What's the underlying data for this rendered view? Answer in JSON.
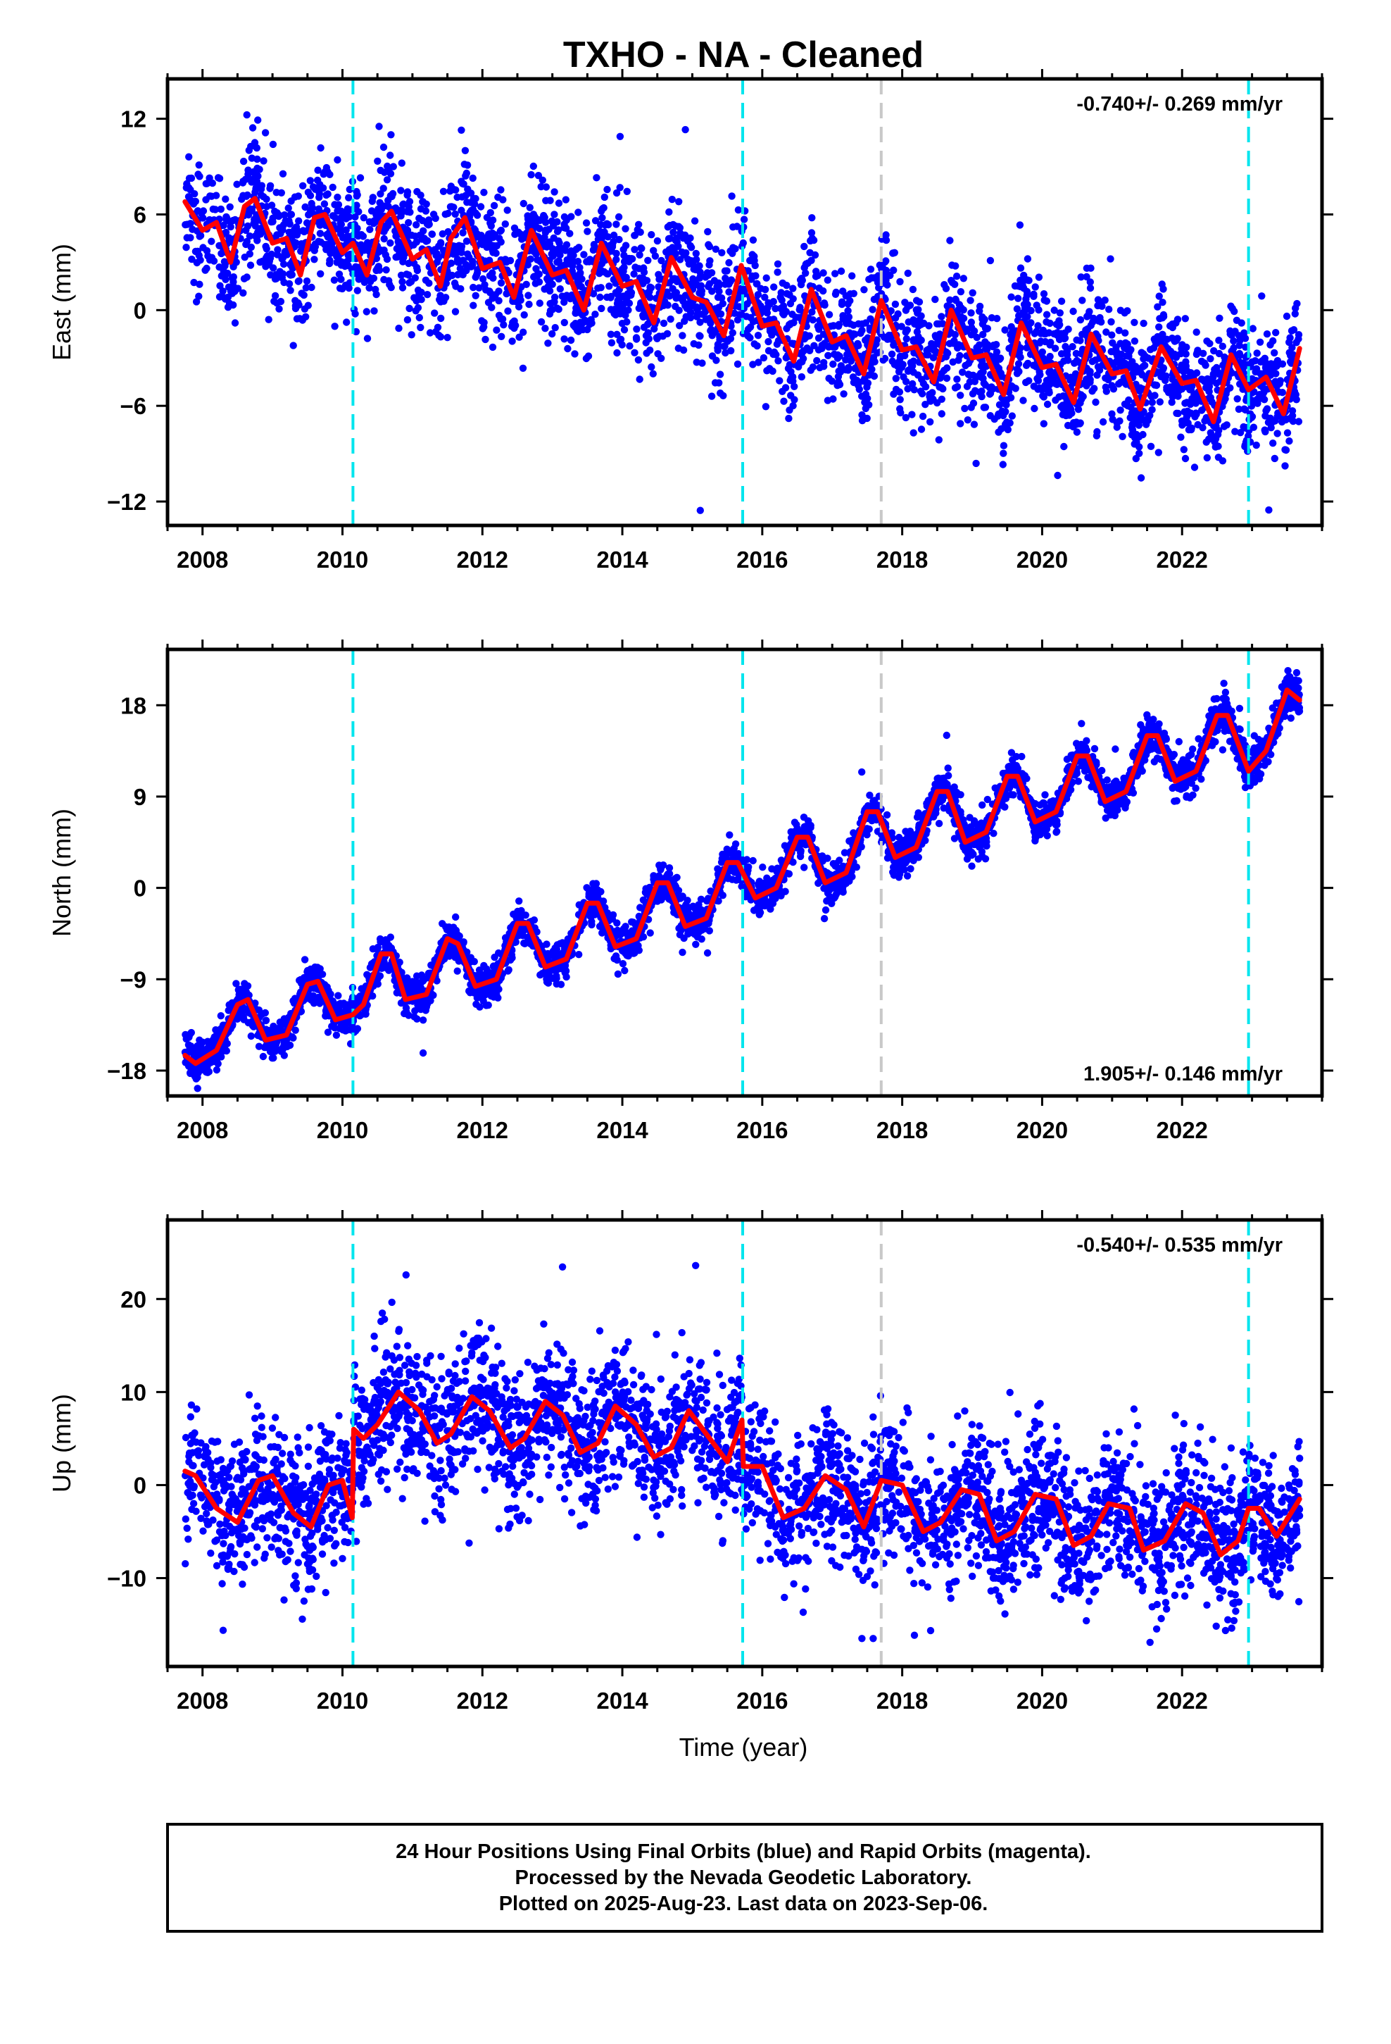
{
  "figure": {
    "title": "TXHO  - NA - Cleaned",
    "xlabel": "Time (year)",
    "footer": [
      "24 Hour Positions Using Final Orbits (blue) and Rapid Orbits (magenta).",
      "Processed by the Nevada Geodetic Laboratory.",
      "Plotted on 2025-Aug-23. Last data on 2023-Sep-06."
    ],
    "colors": {
      "points": "#0000ff",
      "fit": "#ff0000",
      "step_marker": "#00e5ee",
      "equipment_marker": "#c8c8c8",
      "frame": "#000000"
    }
  },
  "chart_data": [
    {
      "type": "scatter",
      "component": "East",
      "ylabel": "East (mm)",
      "rate_label": "-0.740+/- 0.269 mm/yr",
      "xlim": [
        2007.5,
        2024.0
      ],
      "ylim": [
        -13.5,
        14.5
      ],
      "xticks": [
        2008,
        2010,
        2012,
        2014,
        2016,
        2018,
        2020,
        2022
      ],
      "yticks": [
        -12,
        -6,
        0,
        6,
        12
      ],
      "data_start": 2007.75,
      "data_end": 2023.68,
      "dashed_markers": [
        {
          "x": 2010.15,
          "kind": "step"
        },
        {
          "x": 2015.72,
          "kind": "step"
        },
        {
          "x": 2017.7,
          "kind": "equipment"
        },
        {
          "x": 2022.95,
          "kind": "step"
        }
      ],
      "series": [
        {
          "kind": "fit",
          "x": [
            2007.75,
            2008.0,
            2008.2,
            2008.4,
            2008.6,
            2008.75,
            2009.0,
            2009.2,
            2009.4,
            2009.6,
            2009.75,
            2010.0,
            2010.15,
            2010.35,
            2010.55,
            2010.7,
            2011.0,
            2011.2,
            2011.4,
            2011.55,
            2011.75,
            2012.0,
            2012.25,
            2012.45,
            2012.7,
            2013.0,
            2013.2,
            2013.45,
            2013.7,
            2014.0,
            2014.2,
            2014.45,
            2014.7,
            2015.0,
            2015.2,
            2015.45,
            2015.7,
            2016.0,
            2016.2,
            2016.45,
            2016.7,
            2017.0,
            2017.2,
            2017.45,
            2017.7,
            2018.0,
            2018.2,
            2018.45,
            2018.7,
            2019.0,
            2019.2,
            2019.45,
            2019.7,
            2020.0,
            2020.2,
            2020.45,
            2020.7,
            2021.0,
            2021.2,
            2021.4,
            2021.7,
            2022.0,
            2022.2,
            2022.45,
            2022.7,
            2022.95,
            2023.2,
            2023.45,
            2023.68
          ],
          "y": [
            6.8,
            5.0,
            5.5,
            3.0,
            6.5,
            7.0,
            4.2,
            4.5,
            2.2,
            5.8,
            6.0,
            3.6,
            4.2,
            2.2,
            5.5,
            6.2,
            3.2,
            3.8,
            1.5,
            4.5,
            5.8,
            2.6,
            3.0,
            0.8,
            5.0,
            2.2,
            2.5,
            0.0,
            4.2,
            1.5,
            1.8,
            -0.8,
            3.3,
            0.8,
            0.5,
            -1.6,
            2.8,
            -1.0,
            -0.8,
            -3.2,
            1.3,
            -2.0,
            -1.6,
            -4.0,
            0.6,
            -2.5,
            -2.3,
            -4.5,
            0.0,
            -3.0,
            -2.8,
            -5.3,
            -0.8,
            -3.6,
            -3.4,
            -5.8,
            -1.5,
            -4.0,
            -3.8,
            -6.2,
            -2.3,
            -4.6,
            -4.4,
            -7.0,
            -2.8,
            -5.0,
            -4.2,
            -6.5,
            -2.4
          ]
        }
      ]
    },
    {
      "type": "scatter",
      "component": "North",
      "ylabel": "North (mm)",
      "rate_label": "1.905+/- 0.146 mm/yr",
      "xlim": [
        2007.5,
        2024.0
      ],
      "ylim": [
        -20.5,
        23.5
      ],
      "xticks": [
        2008,
        2010,
        2012,
        2014,
        2016,
        2018,
        2020,
        2022
      ],
      "yticks": [
        -18,
        -9,
        0,
        9,
        18
      ],
      "data_start": 2007.75,
      "data_end": 2023.68,
      "dashed_markers": [
        {
          "x": 2010.15,
          "kind": "step"
        },
        {
          "x": 2015.72,
          "kind": "step"
        },
        {
          "x": 2017.7,
          "kind": "equipment"
        },
        {
          "x": 2022.95,
          "kind": "step"
        }
      ],
      "series": [
        {
          "kind": "fit",
          "x": [
            2007.75,
            2007.9,
            2008.2,
            2008.5,
            2008.65,
            2008.9,
            2009.2,
            2009.5,
            2009.65,
            2009.9,
            2010.15,
            2010.3,
            2010.55,
            2010.7,
            2010.9,
            2011.2,
            2011.5,
            2011.65,
            2011.9,
            2012.2,
            2012.5,
            2012.65,
            2012.9,
            2013.2,
            2013.5,
            2013.65,
            2013.9,
            2014.2,
            2014.5,
            2014.65,
            2014.9,
            2015.2,
            2015.5,
            2015.65,
            2015.9,
            2016.2,
            2016.5,
            2016.65,
            2016.9,
            2017.2,
            2017.5,
            2017.65,
            2017.9,
            2018.2,
            2018.5,
            2018.65,
            2018.9,
            2019.2,
            2019.5,
            2019.65,
            2019.9,
            2020.2,
            2020.5,
            2020.65,
            2020.9,
            2021.2,
            2021.5,
            2021.65,
            2021.9,
            2022.2,
            2022.5,
            2022.65,
            2022.95,
            2023.2,
            2023.5,
            2023.68
          ],
          "y": [
            -16.5,
            -17.3,
            -16.0,
            -11.5,
            -11.0,
            -15.0,
            -14.5,
            -9.5,
            -9.2,
            -13.0,
            -12.5,
            -11.5,
            -6.5,
            -6.5,
            -11.0,
            -10.5,
            -5.0,
            -5.5,
            -9.7,
            -9.0,
            -3.5,
            -3.5,
            -7.8,
            -7.0,
            -1.5,
            -1.5,
            -5.8,
            -5.0,
            0.5,
            0.5,
            -3.8,
            -3.0,
            2.5,
            2.5,
            -1.0,
            0.0,
            5.0,
            5.0,
            0.5,
            1.5,
            7.5,
            7.5,
            3.0,
            4.0,
            9.5,
            9.5,
            4.5,
            5.5,
            11.0,
            11.0,
            6.5,
            7.5,
            13.0,
            13.0,
            8.5,
            9.5,
            15.0,
            15.0,
            10.5,
            11.5,
            17.0,
            17.0,
            11.5,
            13.5,
            19.5,
            18.5
          ]
        }
      ]
    },
    {
      "type": "scatter",
      "component": "Up",
      "ylabel": "Up (mm)",
      "rate_label": "-0.540+/- 0.535 mm/yr",
      "xlim": [
        2007.5,
        2024.0
      ],
      "ylim": [
        -19.5,
        28.5
      ],
      "xticks": [
        2008,
        2010,
        2012,
        2014,
        2016,
        2018,
        2020,
        2022
      ],
      "yticks": [
        -10,
        0,
        10,
        20
      ],
      "data_start": 2007.75,
      "data_end": 2023.68,
      "dashed_markers": [
        {
          "x": 2010.15,
          "kind": "step"
        },
        {
          "x": 2015.72,
          "kind": "step"
        },
        {
          "x": 2017.7,
          "kind": "equipment"
        },
        {
          "x": 2022.95,
          "kind": "step"
        }
      ],
      "series": [
        {
          "kind": "fit",
          "x": [
            2007.75,
            2007.9,
            2008.2,
            2008.5,
            2008.8,
            2009.0,
            2009.3,
            2009.55,
            2009.8,
            2010.0,
            2010.14,
            2010.16,
            2010.3,
            2010.5,
            2010.8,
            2011.1,
            2011.35,
            2011.55,
            2011.85,
            2012.1,
            2012.4,
            2012.6,
            2012.9,
            2013.15,
            2013.4,
            2013.65,
            2013.9,
            2014.2,
            2014.45,
            2014.7,
            2014.95,
            2015.2,
            2015.5,
            2015.71,
            2015.73,
            2016.0,
            2016.3,
            2016.6,
            2016.9,
            2017.2,
            2017.45,
            2017.7,
            2018.0,
            2018.3,
            2018.55,
            2018.85,
            2019.1,
            2019.35,
            2019.6,
            2019.9,
            2020.2,
            2020.45,
            2020.7,
            2020.95,
            2021.25,
            2021.45,
            2021.75,
            2022.05,
            2022.3,
            2022.55,
            2022.8,
            2022.95,
            2023.1,
            2023.35,
            2023.68
          ],
          "y": [
            1.5,
            1.0,
            -2.5,
            -4.0,
            0.5,
            1.0,
            -3.0,
            -4.5,
            0.0,
            0.5,
            -3.5,
            6.0,
            5.0,
            6.5,
            10.0,
            8.0,
            4.5,
            5.5,
            9.5,
            8.0,
            4.0,
            5.0,
            9.0,
            7.5,
            3.5,
            4.5,
            8.5,
            6.5,
            3.0,
            4.0,
            8.0,
            5.5,
            2.5,
            7.0,
            2.0,
            2.0,
            -3.5,
            -2.5,
            1.0,
            -0.5,
            -4.5,
            0.5,
            0.0,
            -5.0,
            -4.0,
            -0.5,
            -1.0,
            -6.0,
            -5.0,
            -1.0,
            -1.5,
            -6.5,
            -5.5,
            -2.0,
            -2.5,
            -7.0,
            -6.0,
            -2.0,
            -3.0,
            -7.5,
            -6.0,
            -2.5,
            -2.5,
            -5.5,
            -1.5
          ]
        }
      ]
    }
  ]
}
